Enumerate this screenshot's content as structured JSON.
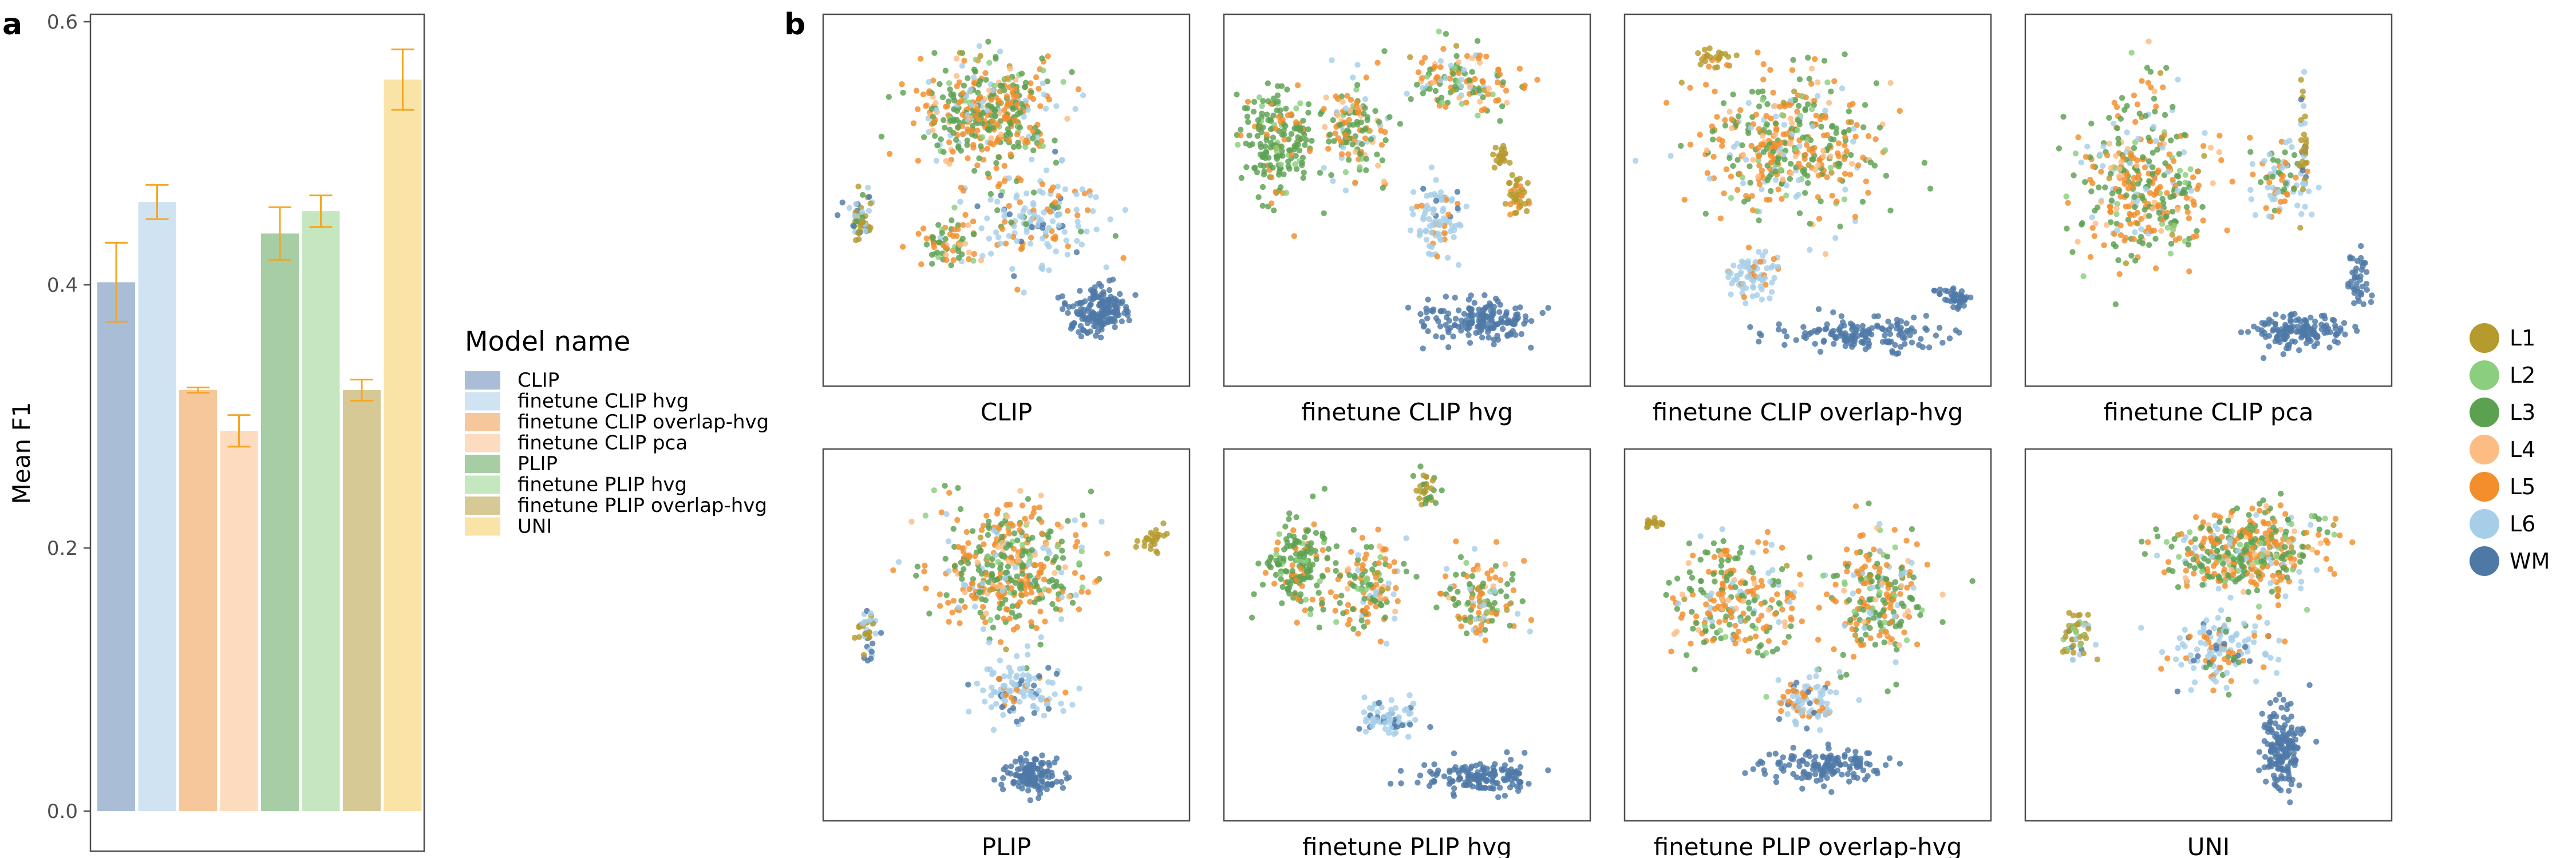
{
  "panel_labels": {
    "a": "a",
    "b": "b"
  },
  "chart_data": [
    {
      "type": "bar",
      "panel": "a",
      "ylabel": "Mean F1",
      "ylim": [
        0,
        0.6
      ],
      "yticks": [
        "0.0",
        "0.2",
        "0.4",
        "0.6"
      ],
      "ytick_values": [
        0.0,
        0.2,
        0.4,
        0.6
      ],
      "grid": false,
      "legend_title": "Model name",
      "legend_position": "right",
      "error_bar_color": "#F5A623",
      "categories": [
        "CLIP",
        "finetune CLIP hvg",
        "finetune CLIP overlap-hvg",
        "finetune CLIP pca",
        "PLIP",
        "finetune PLIP hvg",
        "finetune PLIP overlap-hvg",
        "UNI"
      ],
      "values": [
        0.402,
        0.463,
        0.32,
        0.289,
        0.439,
        0.456,
        0.32,
        0.556
      ],
      "errors": [
        0.03,
        0.013,
        0.002,
        0.012,
        0.02,
        0.012,
        0.008,
        0.023
      ],
      "colors": [
        "#A9BDD6",
        "#CFE3F3",
        "#F7C79C",
        "#FDDBBE",
        "#A6CDA3",
        "#C4E7C0",
        "#D7C995",
        "#F9E3A6"
      ]
    },
    {
      "type": "scatter",
      "panel": "b",
      "description_units": "UMAP embeddings colored by cortical layer",
      "panels": [
        "CLIP",
        "finetune CLIP hvg",
        "finetune CLIP overlap-hvg",
        "finetune CLIP pca",
        "PLIP",
        "finetune PLIP hvg",
        "finetune PLIP overlap-hvg",
        "UNI"
      ],
      "legend": [
        {
          "name": "L1",
          "color": "#B59A2E"
        },
        {
          "name": "L2",
          "color": "#8ACE7E"
        },
        {
          "name": "L3",
          "color": "#5BA150"
        },
        {
          "name": "L4",
          "color": "#FDBC82"
        },
        {
          "name": "L5",
          "color": "#F28E2B"
        },
        {
          "name": "L6",
          "color": "#A6CEE8"
        },
        {
          "name": "WM",
          "color": "#4E79A7"
        }
      ],
      "legend_position": "right"
    }
  ]
}
